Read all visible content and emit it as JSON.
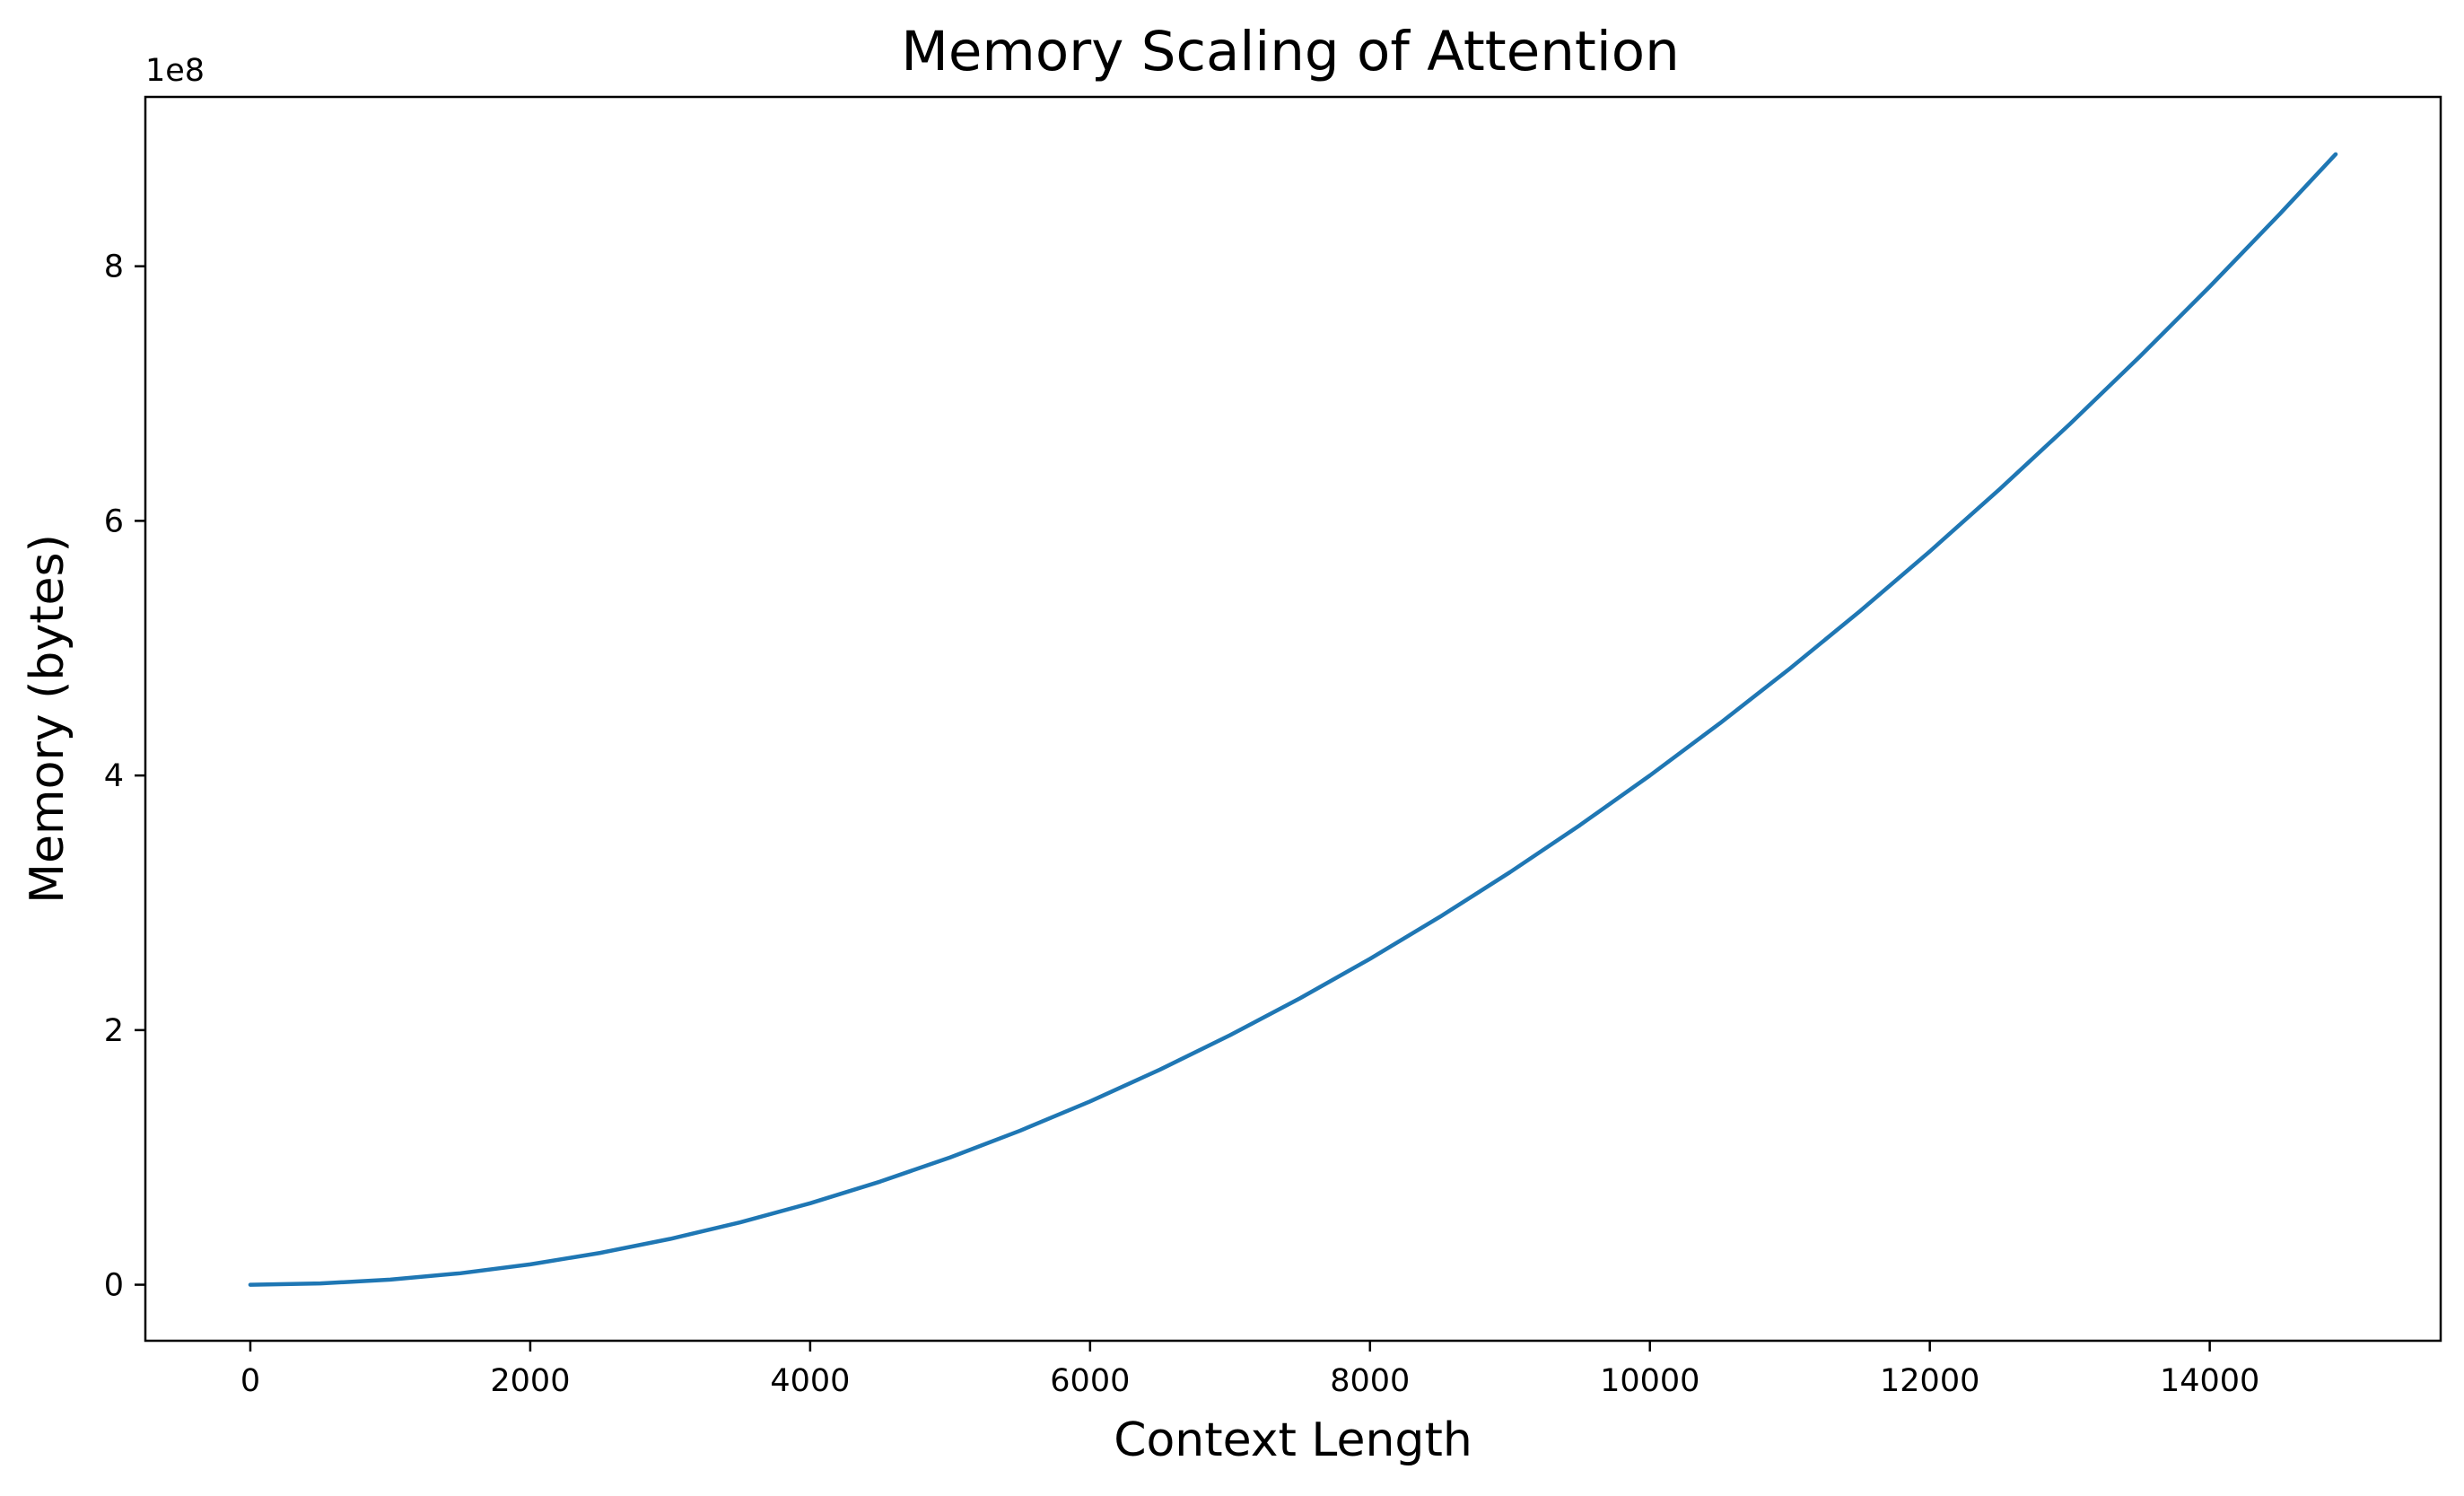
{
  "chart_data": {
    "type": "line",
    "title": "Memory Scaling of Attention",
    "xlabel": "Context Length",
    "ylabel": "Memory (bytes)",
    "y_offset_label": "1e8",
    "xlim": [
      -750,
      15650
    ],
    "ylim": [
      -0.44,
      9.33
    ],
    "x_ticks": [
      0,
      2000,
      4000,
      6000,
      8000,
      10000,
      12000,
      14000
    ],
    "y_ticks": [
      0,
      2,
      4,
      6,
      8
    ],
    "y_ticks_note": "y axis values are in units of 1e8 bytes",
    "grid": false,
    "line_color": "#1f77b4",
    "series": [
      {
        "x": [
          0,
          500,
          1000,
          1500,
          2000,
          2500,
          3000,
          3500,
          4000,
          4500,
          5000,
          5500,
          6000,
          6500,
          7000,
          7500,
          8000,
          8500,
          9000,
          9500,
          10000,
          10500,
          11000,
          11500,
          12000,
          12500,
          13000,
          13500,
          14000,
          14500,
          14900
        ],
        "y": [
          0,
          0.01,
          0.04,
          0.09,
          0.16,
          0.25,
          0.36,
          0.49,
          0.64,
          0.81,
          1.0,
          1.21,
          1.44,
          1.69,
          1.96,
          2.25,
          2.56,
          2.89,
          3.24,
          3.61,
          4.0,
          4.41,
          4.84,
          5.29,
          5.76,
          6.25,
          6.76,
          7.29,
          7.84,
          8.41,
          8.88
        ]
      }
    ]
  }
}
